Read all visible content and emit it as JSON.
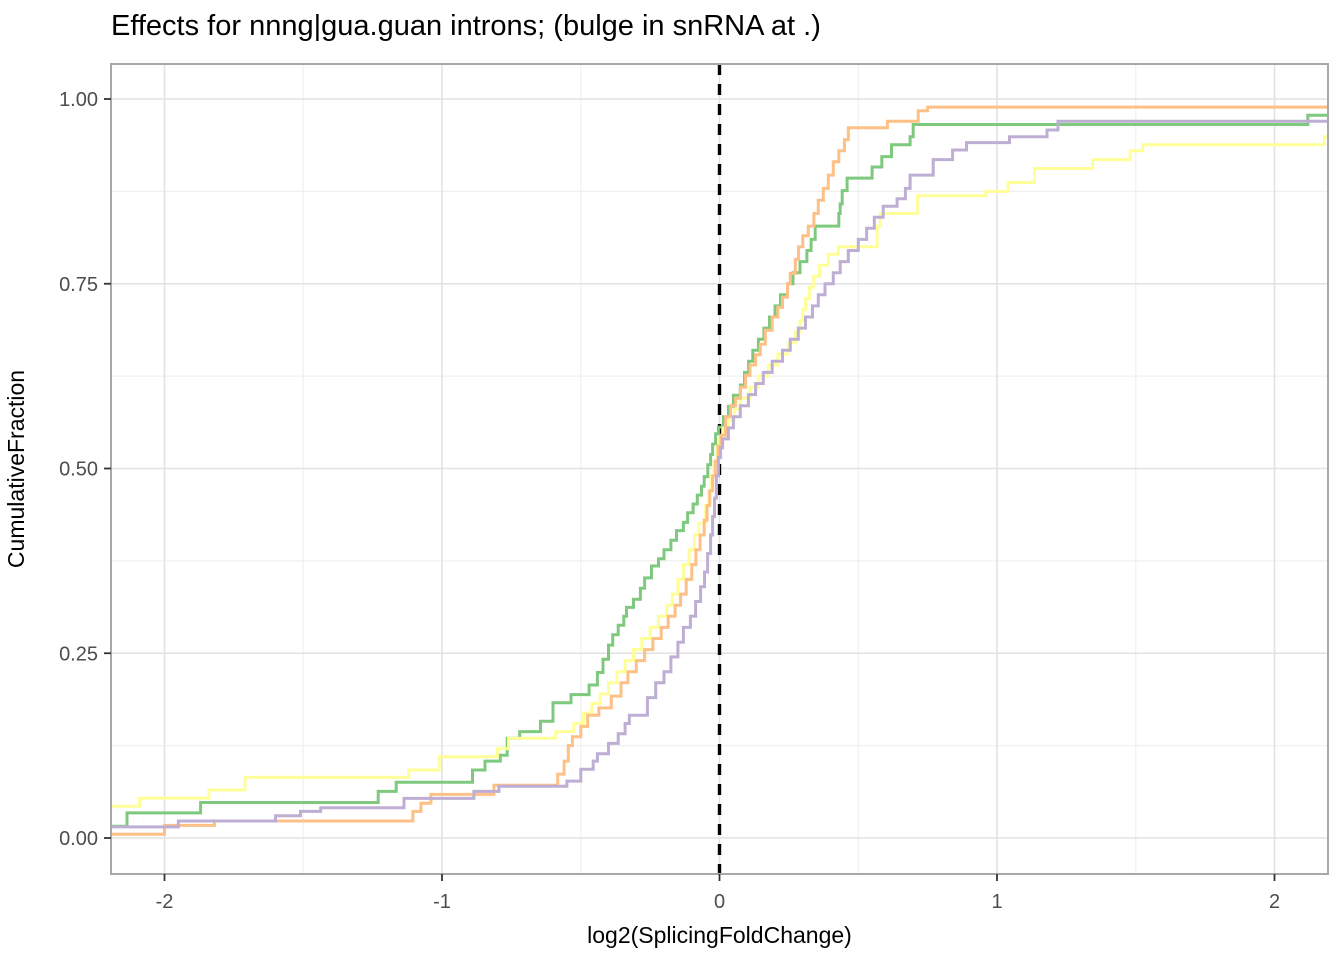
{
  "title": "Effects for nnng|gua.guan introns; (bulge in snRNA at .)",
  "axes": {
    "x": {
      "label": "log2(SplicingFoldChange)",
      "ticks": [
        {
          "v": -2,
          "label": "-2"
        },
        {
          "v": -1,
          "label": "-1"
        },
        {
          "v": 0,
          "label": "0"
        },
        {
          "v": 1,
          "label": "1"
        },
        {
          "v": 2,
          "label": "2"
        }
      ],
      "minor": [
        -1.5,
        -0.5,
        0.5,
        1.5
      ]
    },
    "y": {
      "label": "CumulativeFraction",
      "ticks": [
        {
          "v": 0,
          "label": "0.00"
        },
        {
          "v": 0.25,
          "label": "0.25"
        },
        {
          "v": 0.5,
          "label": "0.50"
        },
        {
          "v": 0.75,
          "label": "0.75"
        },
        {
          "v": 1,
          "label": "1.00"
        }
      ],
      "minor": [
        0.125,
        0.375,
        0.625,
        0.875
      ]
    }
  },
  "refline": {
    "x": 0,
    "style": "dashed",
    "color": "#000000"
  },
  "chart_data": {
    "type": "line",
    "subtype": "ecdf-step",
    "title": "Effects for nnng|gua.guan introns; (bulge in snRNA at .)",
    "xlabel": "log2(SplicingFoldChange)",
    "ylabel": "CumulativeFraction",
    "xlim": [
      -2.19,
      2.19
    ],
    "ylim": [
      0,
      1
    ],
    "grid": true,
    "legend": "none",
    "series": [
      {
        "name": "green",
        "color": "#7FC97F",
        "points": [
          [
            -2.19,
            0.016
          ],
          [
            -2.135,
            0.034
          ],
          [
            -1.87,
            0.048
          ],
          [
            -1.23,
            0.063
          ],
          [
            -1.165,
            0.0755
          ],
          [
            -0.89,
            0.092
          ],
          [
            -0.845,
            0.104
          ],
          [
            -0.79,
            0.112
          ],
          [
            -0.765,
            0.135
          ],
          [
            -0.72,
            0.144
          ],
          [
            -0.645,
            0.158
          ],
          [
            -0.6,
            0.183
          ],
          [
            -0.535,
            0.194
          ],
          [
            -0.47,
            0.207
          ],
          [
            -0.44,
            0.224
          ],
          [
            -0.42,
            0.242
          ],
          [
            -0.4,
            0.261
          ],
          [
            -0.385,
            0.275
          ],
          [
            -0.365,
            0.288
          ],
          [
            -0.345,
            0.3
          ],
          [
            -0.335,
            0.312
          ],
          [
            -0.31,
            0.323
          ],
          [
            -0.285,
            0.338
          ],
          [
            -0.27,
            0.352
          ],
          [
            -0.245,
            0.368
          ],
          [
            -0.22,
            0.378
          ],
          [
            -0.2,
            0.39
          ],
          [
            -0.175,
            0.403
          ],
          [
            -0.155,
            0.416
          ],
          [
            -0.13,
            0.427
          ],
          [
            -0.115,
            0.44
          ],
          [
            -0.095,
            0.452
          ],
          [
            -0.08,
            0.464
          ],
          [
            -0.065,
            0.476
          ],
          [
            -0.055,
            0.489
          ],
          [
            -0.042,
            0.505
          ],
          [
            -0.032,
            0.519
          ],
          [
            -0.025,
            0.533
          ],
          [
            -0.014,
            0.547
          ],
          [
            -0.004,
            0.556
          ],
          [
            0.014,
            0.57
          ],
          [
            0.032,
            0.584
          ],
          [
            0.05,
            0.599
          ],
          [
            0.075,
            0.613
          ],
          [
            0.09,
            0.63
          ],
          [
            0.105,
            0.645
          ],
          [
            0.12,
            0.66
          ],
          [
            0.14,
            0.675
          ],
          [
            0.16,
            0.69
          ],
          [
            0.18,
            0.705
          ],
          [
            0.2,
            0.72
          ],
          [
            0.22,
            0.735
          ],
          [
            0.245,
            0.75
          ],
          [
            0.265,
            0.765
          ],
          [
            0.29,
            0.78
          ],
          [
            0.315,
            0.795
          ],
          [
            0.33,
            0.81
          ],
          [
            0.345,
            0.828
          ],
          [
            0.43,
            0.845
          ],
          [
            0.435,
            0.858
          ],
          [
            0.442,
            0.876
          ],
          [
            0.46,
            0.893
          ],
          [
            0.55,
            0.908
          ],
          [
            0.585,
            0.922
          ],
          [
            0.62,
            0.938
          ],
          [
            0.687,
            0.949
          ],
          [
            0.698,
            0.9655
          ],
          [
            2.12,
            0.978
          ]
        ]
      },
      {
        "name": "yellow",
        "color": "#FFFF99",
        "points": [
          [
            -2.19,
            0.043
          ],
          [
            -2.09,
            0.054
          ],
          [
            -1.84,
            0.065
          ],
          [
            -1.71,
            0.082
          ],
          [
            -1.12,
            0.092
          ],
          [
            -1.01,
            0.11
          ],
          [
            -0.8,
            0.121
          ],
          [
            -0.76,
            0.135
          ],
          [
            -0.59,
            0.144
          ],
          [
            -0.525,
            0.155
          ],
          [
            -0.49,
            0.169
          ],
          [
            -0.46,
            0.182
          ],
          [
            -0.43,
            0.195
          ],
          [
            -0.4,
            0.21
          ],
          [
            -0.37,
            0.225
          ],
          [
            -0.34,
            0.24
          ],
          [
            -0.31,
            0.255
          ],
          [
            -0.28,
            0.27
          ],
          [
            -0.25,
            0.285
          ],
          [
            -0.22,
            0.3
          ],
          [
            -0.19,
            0.315
          ],
          [
            -0.17,
            0.33
          ],
          [
            -0.15,
            0.35
          ],
          [
            -0.13,
            0.37
          ],
          [
            -0.11,
            0.39
          ],
          [
            -0.09,
            0.41
          ],
          [
            -0.075,
            0.426
          ],
          [
            -0.05,
            0.45
          ],
          [
            -0.04,
            0.47
          ],
          [
            -0.03,
            0.49
          ],
          [
            -0.02,
            0.51
          ],
          [
            -0.01,
            0.53
          ],
          [
            0.0,
            0.54
          ],
          [
            0.013,
            0.555
          ],
          [
            0.032,
            0.565
          ],
          [
            0.054,
            0.58
          ],
          [
            0.075,
            0.595
          ],
          [
            0.11,
            0.61
          ],
          [
            0.14,
            0.625
          ],
          [
            0.176,
            0.64
          ],
          [
            0.21,
            0.655
          ],
          [
            0.248,
            0.67
          ],
          [
            0.273,
            0.685
          ],
          [
            0.29,
            0.7
          ],
          [
            0.3,
            0.715
          ],
          [
            0.31,
            0.73
          ],
          [
            0.324,
            0.745
          ],
          [
            0.338,
            0.76
          ],
          [
            0.36,
            0.775
          ],
          [
            0.392,
            0.79
          ],
          [
            0.428,
            0.8
          ],
          [
            0.568,
            0.828
          ],
          [
            0.579,
            0.845
          ],
          [
            0.713,
            0.869
          ],
          [
            0.96,
            0.875
          ],
          [
            1.04,
            0.887
          ],
          [
            1.135,
            0.906
          ],
          [
            1.345,
            0.918
          ],
          [
            1.48,
            0.93
          ],
          [
            1.525,
            0.938
          ],
          [
            2.18,
            0.949
          ]
        ]
      },
      {
        "name": "orange",
        "color": "#FDC086",
        "points": [
          [
            -2.19,
            0.005
          ],
          [
            -2.0,
            0.017
          ],
          [
            -1.82,
            0.023
          ],
          [
            -1.105,
            0.036
          ],
          [
            -1.076,
            0.047
          ],
          [
            -1.04,
            0.059
          ],
          [
            -0.813,
            0.0714
          ],
          [
            -0.583,
            0.0865
          ],
          [
            -0.56,
            0.104
          ],
          [
            -0.545,
            0.125
          ],
          [
            -0.53,
            0.137
          ],
          [
            -0.5,
            0.151
          ],
          [
            -0.475,
            0.166
          ],
          [
            -0.435,
            0.176
          ],
          [
            -0.39,
            0.192
          ],
          [
            -0.355,
            0.21
          ],
          [
            -0.33,
            0.225
          ],
          [
            -0.3,
            0.24
          ],
          [
            -0.27,
            0.255
          ],
          [
            -0.24,
            0.27
          ],
          [
            -0.21,
            0.285
          ],
          [
            -0.185,
            0.3
          ],
          [
            -0.16,
            0.315
          ],
          [
            -0.14,
            0.33
          ],
          [
            -0.12,
            0.35
          ],
          [
            -0.1,
            0.37
          ],
          [
            -0.085,
            0.39
          ],
          [
            -0.07,
            0.41
          ],
          [
            -0.055,
            0.43
          ],
          [
            -0.045,
            0.45
          ],
          [
            -0.035,
            0.47
          ],
          [
            -0.025,
            0.49
          ],
          [
            -0.015,
            0.51
          ],
          [
            -0.005,
            0.53
          ],
          [
            0.005,
            0.545
          ],
          [
            0.022,
            0.57
          ],
          [
            0.04,
            0.585
          ],
          [
            0.058,
            0.595
          ],
          [
            0.075,
            0.61
          ],
          [
            0.094,
            0.626
          ],
          [
            0.11,
            0.64
          ],
          [
            0.13,
            0.654
          ],
          [
            0.147,
            0.668
          ],
          [
            0.165,
            0.687
          ],
          [
            0.19,
            0.705
          ],
          [
            0.21,
            0.718
          ],
          [
            0.227,
            0.732
          ],
          [
            0.245,
            0.75
          ],
          [
            0.255,
            0.764
          ],
          [
            0.273,
            0.783
          ],
          [
            0.285,
            0.8
          ],
          [
            0.3,
            0.815
          ],
          [
            0.32,
            0.828
          ],
          [
            0.34,
            0.845
          ],
          [
            0.356,
            0.863
          ],
          [
            0.374,
            0.879
          ],
          [
            0.392,
            0.897
          ],
          [
            0.41,
            0.915
          ],
          [
            0.43,
            0.93
          ],
          [
            0.45,
            0.945
          ],
          [
            0.464,
            0.961
          ],
          [
            0.605,
            0.97
          ],
          [
            0.716,
            0.984
          ],
          [
            0.75,
            0.989
          ]
        ]
      },
      {
        "name": "purple",
        "color": "#BEAED4",
        "points": [
          [
            -2.19,
            0.015
          ],
          [
            -1.95,
            0.023
          ],
          [
            -1.6,
            0.03
          ],
          [
            -1.51,
            0.036
          ],
          [
            -1.437,
            0.041
          ],
          [
            -1.137,
            0.0536
          ],
          [
            -0.885,
            0.063
          ],
          [
            -0.795,
            0.07
          ],
          [
            -0.55,
            0.077
          ],
          [
            -0.5,
            0.093
          ],
          [
            -0.455,
            0.104
          ],
          [
            -0.44,
            0.114
          ],
          [
            -0.4,
            0.128
          ],
          [
            -0.365,
            0.141
          ],
          [
            -0.34,
            0.155
          ],
          [
            -0.325,
            0.166
          ],
          [
            -0.26,
            0.19
          ],
          [
            -0.23,
            0.21
          ],
          [
            -0.2,
            0.225
          ],
          [
            -0.175,
            0.245
          ],
          [
            -0.15,
            0.265
          ],
          [
            -0.13,
            0.285
          ],
          [
            -0.105,
            0.3
          ],
          [
            -0.086,
            0.32
          ],
          [
            -0.068,
            0.34
          ],
          [
            -0.054,
            0.36
          ],
          [
            -0.043,
            0.385
          ],
          [
            -0.032,
            0.41
          ],
          [
            -0.025,
            0.435
          ],
          [
            -0.018,
            0.46
          ],
          [
            -0.011,
            0.49
          ],
          [
            -0.004,
            0.515
          ],
          [
            0.004,
            0.528
          ],
          [
            0.011,
            0.54
          ],
          [
            0.032,
            0.555
          ],
          [
            0.05,
            0.57
          ],
          [
            0.075,
            0.585
          ],
          [
            0.104,
            0.6
          ],
          [
            0.13,
            0.615
          ],
          [
            0.158,
            0.63
          ],
          [
            0.19,
            0.645
          ],
          [
            0.227,
            0.66
          ],
          [
            0.255,
            0.675
          ],
          [
            0.284,
            0.69
          ],
          [
            0.31,
            0.705
          ],
          [
            0.335,
            0.72
          ],
          [
            0.356,
            0.735
          ],
          [
            0.38,
            0.75
          ],
          [
            0.41,
            0.765
          ],
          [
            0.435,
            0.78
          ],
          [
            0.464,
            0.795
          ],
          [
            0.5,
            0.81
          ],
          [
            0.53,
            0.825
          ],
          [
            0.558,
            0.84
          ],
          [
            0.59,
            0.855
          ],
          [
            0.64,
            0.865
          ],
          [
            0.67,
            0.879
          ],
          [
            0.687,
            0.897
          ],
          [
            0.77,
            0.918
          ],
          [
            0.84,
            0.931
          ],
          [
            0.89,
            0.941
          ],
          [
            1.045,
            0.949
          ],
          [
            1.18,
            0.958
          ],
          [
            1.22,
            0.97
          ]
        ]
      }
    ]
  }
}
